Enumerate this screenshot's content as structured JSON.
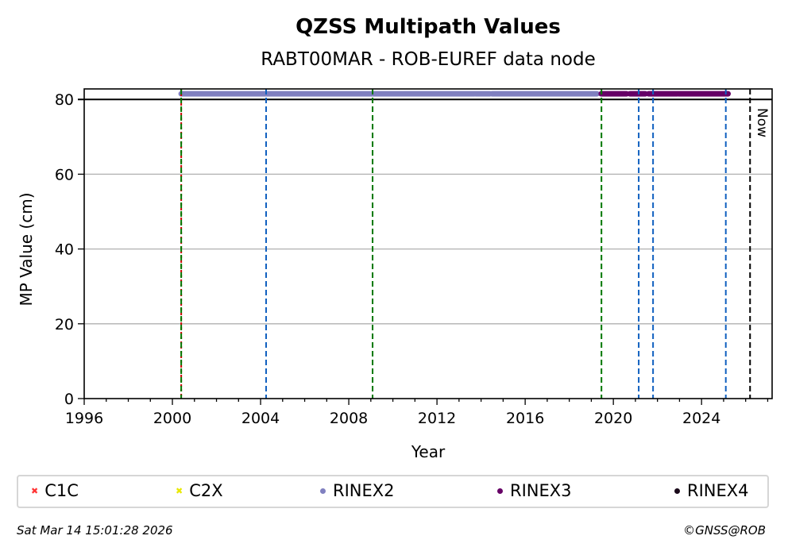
{
  "chart_data": {
    "type": "scatter",
    "title": "QZSS Multipath Values",
    "subtitle": "RABT00MAR - ROB-EUREF data node",
    "xlabel": "Year",
    "ylabel": "MP Value (cm)",
    "xlim": [
      1996,
      2027.2
    ],
    "ylim": [
      0,
      82.8
    ],
    "xticks": [
      1996,
      2000,
      2004,
      2008,
      2012,
      2016,
      2020,
      2024
    ],
    "yticks": [
      0,
      20,
      40,
      60,
      80
    ],
    "grid": "horizontal",
    "threshold_line": 80,
    "series": [
      {
        "name": "C1C",
        "color": "#ff3333",
        "marker": "x",
        "segments": []
      },
      {
        "name": "C2X",
        "color": "#ffff00",
        "marker": "x",
        "segments": []
      },
      {
        "name": "RINEX2",
        "color": "#8080c0",
        "marker": "o",
        "value": 81.5,
        "segments": [
          [
            2000.4,
            2013.7
          ],
          [
            2013.75,
            2014.4
          ],
          [
            2014.5,
            2019.25
          ]
        ]
      },
      {
        "name": "RINEX3",
        "color": "#660066",
        "marker": "o",
        "value": 81.5,
        "segments": [
          [
            2019.45,
            2020.6
          ],
          [
            2020.75,
            2021.45
          ],
          [
            2021.6,
            2022.9
          ],
          [
            2022.95,
            2025.2
          ]
        ]
      },
      {
        "name": "RINEX4",
        "color": "#1a0a1a",
        "marker": "o",
        "segments": []
      }
    ],
    "vlines": [
      {
        "x": 2000.4,
        "color": "#cc0000",
        "style": "dotted"
      },
      {
        "x": 2000.4,
        "color": "#007700",
        "style": "dashed"
      },
      {
        "x": 2004.25,
        "color": "#1060c0",
        "style": "dashed"
      },
      {
        "x": 2009.08,
        "color": "#007700",
        "style": "dashed"
      },
      {
        "x": 2019.46,
        "color": "#007700",
        "style": "dashed"
      },
      {
        "x": 2021.15,
        "color": "#1060c0",
        "style": "dashed"
      },
      {
        "x": 2021.8,
        "color": "#1060c0",
        "style": "dashed"
      },
      {
        "x": 2025.1,
        "color": "#1060c0",
        "style": "dashed"
      },
      {
        "x": 2026.2,
        "color": "#000000",
        "style": "dashed",
        "label": "Now"
      }
    ],
    "legend_position": "bottom"
  },
  "footer": {
    "timestamp": "Sat Mar 14 15:01:28 2026",
    "credit": "©GNSS@ROB"
  }
}
